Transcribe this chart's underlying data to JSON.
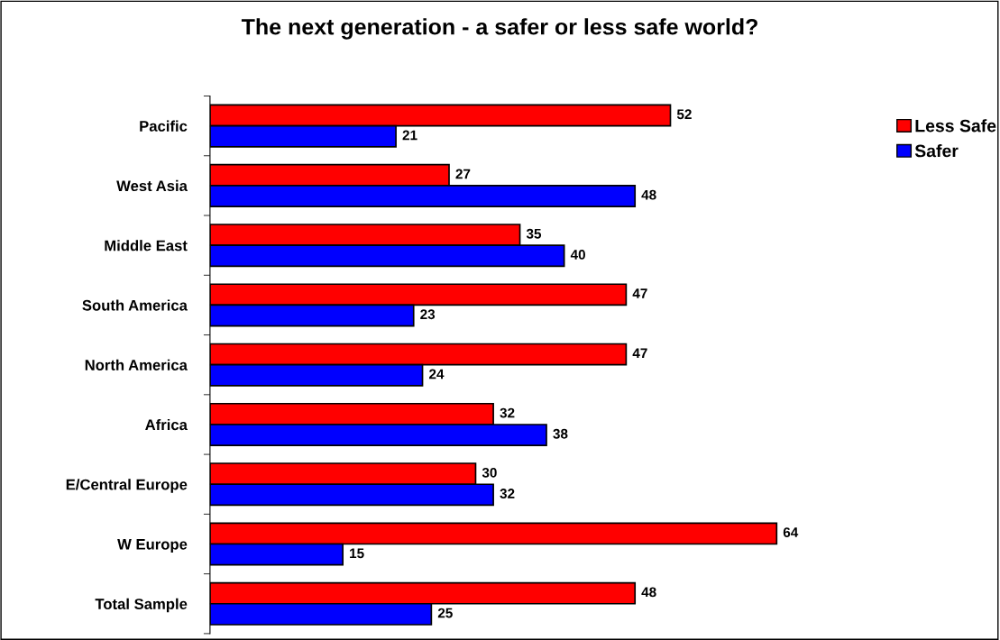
{
  "chart_data": {
    "type": "bar",
    "orientation": "horizontal",
    "title": "The next generation - a safer or less safe world?",
    "categories": [
      "Pacific",
      "West Asia",
      "Middle East",
      "South America",
      "North America",
      "Africa",
      "E/Central Europe",
      "W Europe",
      "Total Sample"
    ],
    "series": [
      {
        "name": "Less Safe",
        "color": "#ff0000",
        "values": [
          52,
          27,
          35,
          47,
          47,
          32,
          30,
          64,
          48
        ]
      },
      {
        "name": "Safer",
        "color": "#0000ff",
        "values": [
          21,
          48,
          40,
          23,
          24,
          38,
          32,
          15,
          25
        ]
      }
    ],
    "data_labels": true,
    "legend": "right",
    "grid": false
  }
}
